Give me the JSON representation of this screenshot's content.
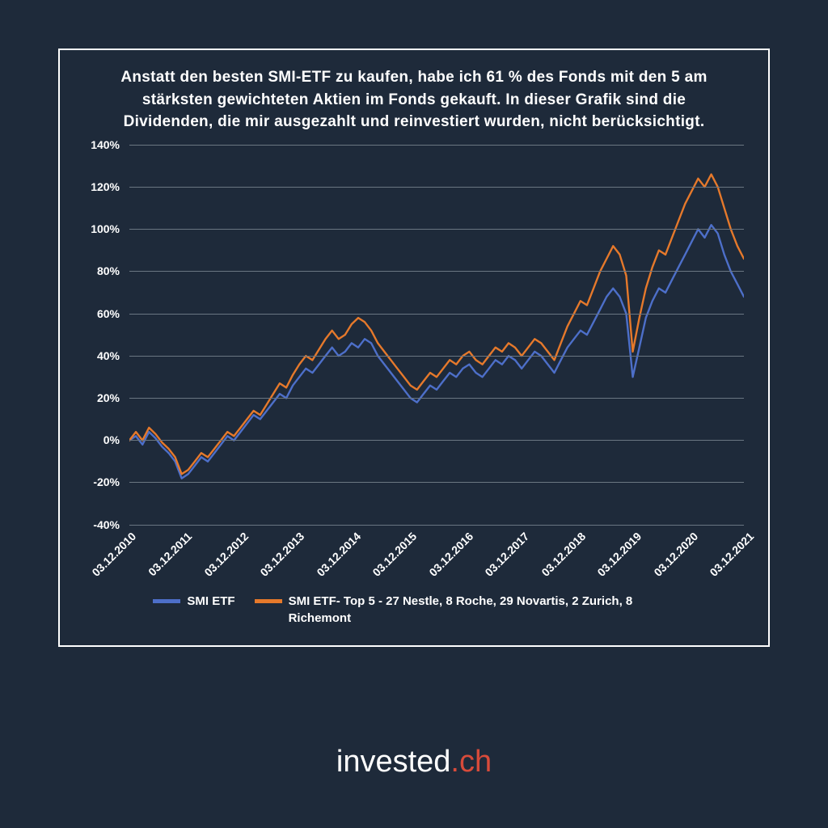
{
  "background_color": "#1e2a3a",
  "frame_border_color": "#ffffff",
  "grid_color": "#6a7682",
  "text_color": "#ffffff",
  "title": "Anstatt den besten SMI-ETF zu kaufen, habe ich 61 % des Fonds mit den 5 am stärksten gewichteten Aktien im Fonds gekauft. In dieser Grafik sind die Dividenden, die mir ausgezahlt und reinvestiert wurden, nicht berücksichtigt.",
  "title_fontsize": 19,
  "chart": {
    "type": "line",
    "ylim": [
      -40,
      140
    ],
    "ytick_step": 20,
    "yticks": [
      "140%",
      "120%",
      "100%",
      "80%",
      "60%",
      "40%",
      "20%",
      "0%",
      "-20%",
      "-40%"
    ],
    "xticks": [
      "03.12.2010",
      "03.12.2011",
      "03.12.2012",
      "03.12.2013",
      "03.12.2014",
      "03.12.2015",
      "03.12.2016",
      "03.12.2017",
      "03.12.2018",
      "03.12.2019",
      "03.12.2020",
      "03.12.2021"
    ],
    "x_label_rotation": -45,
    "line_width": 2.4,
    "series": [
      {
        "name": "SMI ETF",
        "color": "#4d6fc9",
        "values": [
          0,
          2,
          -2,
          4,
          1,
          -3,
          -6,
          -10,
          -18,
          -16,
          -12,
          -8,
          -10,
          -6,
          -2,
          2,
          0,
          4,
          8,
          12,
          10,
          14,
          18,
          22,
          20,
          26,
          30,
          34,
          32,
          36,
          40,
          44,
          40,
          42,
          46,
          44,
          48,
          46,
          40,
          36,
          32,
          28,
          24,
          20,
          18,
          22,
          26,
          24,
          28,
          32,
          30,
          34,
          36,
          32,
          30,
          34,
          38,
          36,
          40,
          38,
          34,
          38,
          42,
          40,
          36,
          32,
          38,
          44,
          48,
          52,
          50,
          56,
          62,
          68,
          72,
          68,
          60,
          30,
          44,
          58,
          66,
          72,
          70,
          76,
          82,
          88,
          94,
          100,
          96,
          102,
          98,
          88,
          80,
          74,
          68
        ]
      },
      {
        "name": "SMI ETF- Top 5 - 27 Nestle, 8 Roche, 29 Novartis, 2 Zurich, 8 Richemont",
        "color": "#e6792b",
        "values": [
          0,
          4,
          0,
          6,
          3,
          -1,
          -4,
          -8,
          -16,
          -14,
          -10,
          -6,
          -8,
          -4,
          0,
          4,
          2,
          6,
          10,
          14,
          12,
          17,
          22,
          27,
          25,
          31,
          36,
          40,
          38,
          43,
          48,
          52,
          48,
          50,
          55,
          58,
          56,
          52,
          46,
          42,
          38,
          34,
          30,
          26,
          24,
          28,
          32,
          30,
          34,
          38,
          36,
          40,
          42,
          38,
          36,
          40,
          44,
          42,
          46,
          44,
          40,
          44,
          48,
          46,
          42,
          38,
          46,
          54,
          60,
          66,
          64,
          72,
          80,
          86,
          92,
          88,
          78,
          42,
          58,
          72,
          82,
          90,
          88,
          96,
          104,
          112,
          118,
          124,
          120,
          126,
          120,
          110,
          100,
          92,
          86
        ]
      }
    ]
  },
  "legend": {
    "items": [
      {
        "label": "SMI ETF",
        "color": "#4d6fc9"
      },
      {
        "label": "SMI ETF- Top 5 - 27 Nestle, 8 Roche, 29 Novartis, 2 Zurich, 8 Richemont",
        "color": "#e6792b"
      }
    ]
  },
  "brand": {
    "part1": "invested",
    "part2": ".ch",
    "color1": "#ffffff",
    "color2": "#d84b3a",
    "fontsize": 38
  }
}
